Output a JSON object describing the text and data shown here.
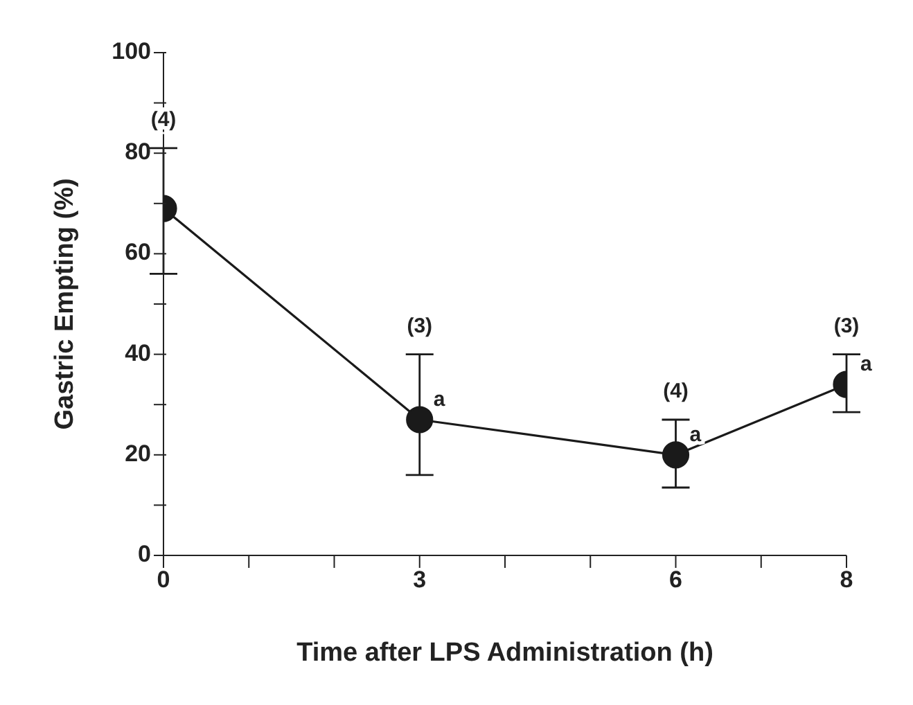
{
  "chart_data": {
    "type": "line",
    "xlabel": "Time after LPS Administration (h)",
    "ylabel": "Gastric Empting (%)",
    "x": [
      0,
      3,
      6,
      8
    ],
    "series": [
      {
        "color": "#1a1a1a",
        "values": [
          69,
          27,
          20,
          34
        ],
        "errors": [
          [
            56,
            81
          ],
          [
            16,
            40
          ],
          [
            13.5,
            27
          ],
          [
            28.5,
            40
          ]
        ]
      }
    ],
    "xlim": [
      0,
      8
    ],
    "xticks": [
      0,
      {
        "value": 1,
        "label": null
      },
      {
        "value": 2,
        "label": null
      },
      3,
      {
        "value": 4,
        "label": null
      },
      {
        "value": 5,
        "label": null
      },
      6,
      {
        "value": 7,
        "label": null
      },
      8
    ],
    "ylim": [
      0,
      100
    ],
    "yticks": [
      0,
      {
        "value": 10,
        "label": null
      },
      20,
      {
        "value": 30,
        "label": null
      },
      40,
      {
        "value": 50,
        "label": null
      },
      60,
      {
        "value": 70,
        "label": null
      },
      80,
      {
        "value": 90,
        "label": null
      },
      100
    ],
    "marker": "circle",
    "line_style": "solid",
    "grid": false,
    "legend": false,
    "annotations": [
      {
        "text": "(4)",
        "x": 0,
        "y": 81
      },
      {
        "text": "(3)",
        "x": 3,
        "y": 40
      },
      {
        "text": "(4)",
        "x": 6,
        "y": 27
      },
      {
        "text": "(3)",
        "x": 8,
        "y": 40
      },
      {
        "text": "a",
        "x": 3,
        "y": 27
      },
      {
        "text": "a",
        "x": 6,
        "y": 20
      },
      {
        "text": "a",
        "x": 8,
        "y": 34
      }
    ]
  }
}
